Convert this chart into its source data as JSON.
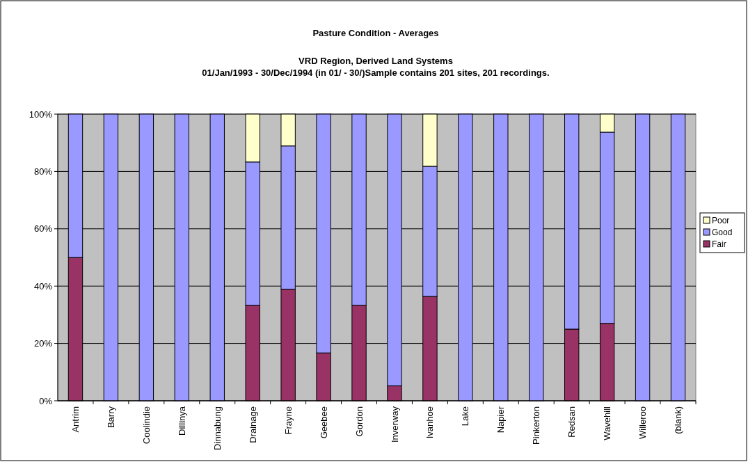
{
  "chart_data": {
    "type": "bar",
    "stacked": true,
    "title": "Pasture Condition - Averages",
    "subtitle": "VRD Region, Derived Land Systems\n01/Jan/1993 - 30/Dec/1994 (in 01/ - 30/)Sample contains 201 sites, 201 recordings.",
    "categories": [
      "Antrim",
      "Barry",
      "Coolindie",
      "Dillinya",
      "Dinnabung",
      "Drainage",
      "Frayne",
      "Geebee",
      "Gordon",
      "Inverway",
      "Ivanhoe",
      "Lake",
      "Napier",
      "Pinkerton",
      "Redsan",
      "Wavehill",
      "Willeroo",
      "(blank)"
    ],
    "series": [
      {
        "name": "Fair",
        "color": "#993366",
        "values": [
          50,
          null,
          null,
          null,
          null,
          33.3,
          38.9,
          16.7,
          33.3,
          5.2,
          36.4,
          null,
          null,
          null,
          25,
          27,
          null,
          null
        ]
      },
      {
        "name": "Good",
        "color": "#9999ff",
        "values": [
          50,
          100,
          100,
          100,
          100,
          50,
          50,
          83.3,
          66.7,
          94.8,
          45.4,
          100,
          100,
          100,
          75,
          66.7,
          100,
          100
        ]
      },
      {
        "name": "Poor",
        "color": "#ffffcc",
        "values": [
          null,
          null,
          null,
          null,
          null,
          16.7,
          11.1,
          null,
          null,
          null,
          18.2,
          null,
          null,
          null,
          null,
          6.3,
          null,
          null
        ]
      }
    ],
    "ylim": [
      0,
      100
    ],
    "yticks": [
      {
        "value": 0,
        "label": "0%"
      },
      {
        "value": 20,
        "label": "20%"
      },
      {
        "value": 40,
        "label": "40%"
      },
      {
        "value": 60,
        "label": "60%"
      },
      {
        "value": 80,
        "label": "80%"
      },
      {
        "value": 100,
        "label": "100%"
      }
    ],
    "grid": "y",
    "legend": "right"
  }
}
